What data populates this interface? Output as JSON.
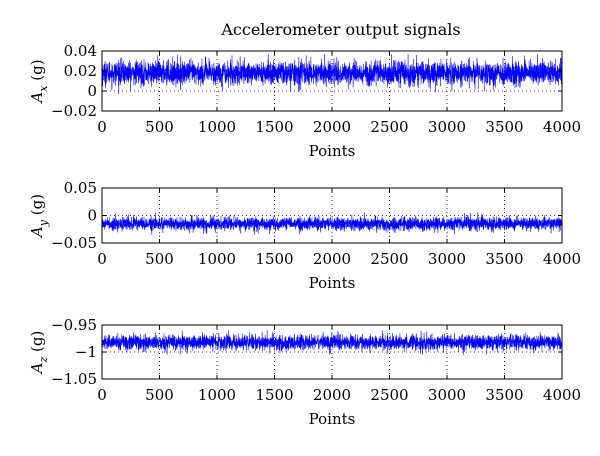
{
  "chart_data": {
    "title": "Accelerometer output signals",
    "line_color": "#0000ff",
    "panels": [
      {
        "type": "line",
        "ylabel_base": "A",
        "ylabel_sub": "x",
        "ylabel_unit": " (g)",
        "xlabel": "Points",
        "xlim": [
          0,
          4000
        ],
        "ylim": [
          -0.02,
          0.04
        ],
        "xticks": [
          0,
          500,
          1000,
          1500,
          2000,
          2500,
          3000,
          3500,
          4000
        ],
        "yticks": [
          -0.02,
          0,
          0.02,
          0.04
        ],
        "ytick_labels": [
          "−0.02",
          "0",
          "0.02",
          "0.04"
        ],
        "grid": "dotted",
        "series": [
          {
            "n_points": 4000,
            "mean": 0.018,
            "noise_std": 0.006,
            "max": 0.037,
            "min": -0.006
          }
        ]
      },
      {
        "type": "line",
        "ylabel_base": "A",
        "ylabel_sub": "y",
        "ylabel_unit": " (g)",
        "xlabel": "Points",
        "xlim": [
          0,
          4000
        ],
        "ylim": [
          -0.05,
          0.05
        ],
        "xticks": [
          0,
          500,
          1000,
          1500,
          2000,
          2500,
          3000,
          3500,
          4000
        ],
        "yticks": [
          -0.05,
          0,
          0.05
        ],
        "ytick_labels": [
          "−0.05",
          "0",
          "0.05"
        ],
        "grid": "dotted",
        "series": [
          {
            "n_points": 4000,
            "mean": -0.015,
            "noise_std": 0.006,
            "max": 0.007,
            "min": -0.04
          }
        ]
      },
      {
        "type": "line",
        "ylabel_base": "A",
        "ylabel_sub": "z",
        "ylabel_unit": " (g)",
        "xlabel": "Points",
        "xlim": [
          0,
          4000
        ],
        "ylim": [
          -1.05,
          -0.95
        ],
        "xticks": [
          0,
          500,
          1000,
          1500,
          2000,
          2500,
          3000,
          3500,
          4000
        ],
        "yticks": [
          -1.05,
          -1,
          -0.95
        ],
        "ytick_labels": [
          "−1.05",
          "−1",
          "−0.95"
        ],
        "grid": "dotted",
        "series": [
          {
            "n_points": 4000,
            "mean": -0.982,
            "noise_std": 0.007,
            "max": -0.96,
            "min": -1.005
          }
        ]
      }
    ]
  }
}
